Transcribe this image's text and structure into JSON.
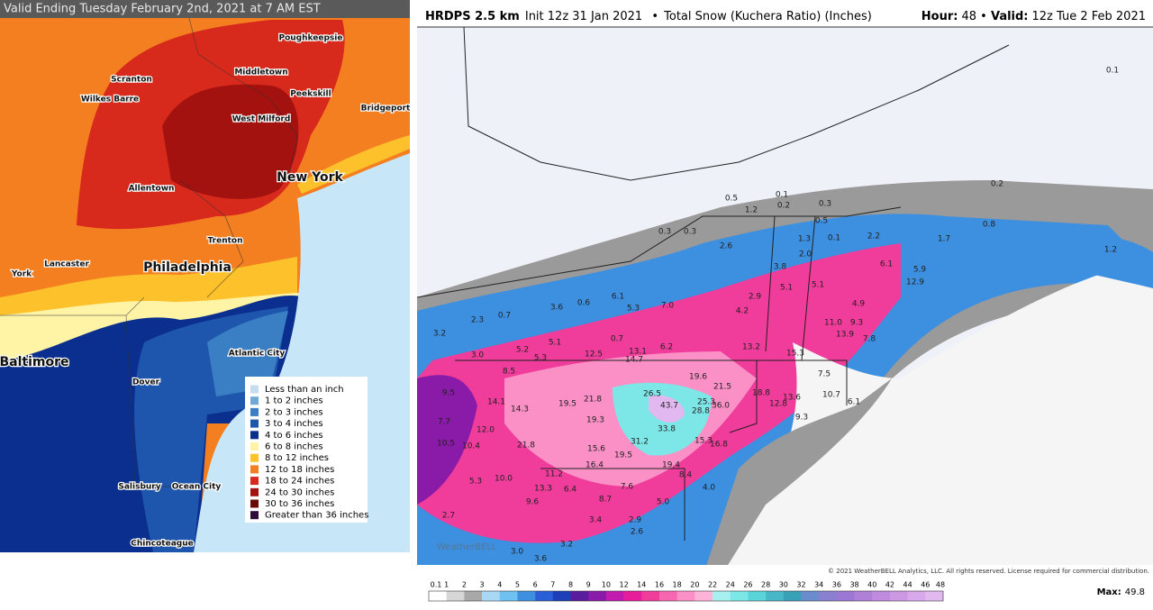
{
  "left_map": {
    "title": "Valid Ending Tuesday February 2nd, 2021 at 7 AM EST",
    "cities": [
      {
        "name": "Poughkeepsie"
      },
      {
        "name": "Scranton"
      },
      {
        "name": "Middletown"
      },
      {
        "name": "Wilkes Barre"
      },
      {
        "name": "Peekskill"
      },
      {
        "name": "Bridgeport"
      },
      {
        "name": "West Milford"
      },
      {
        "name": "New York"
      },
      {
        "name": "Allentown"
      },
      {
        "name": "Trenton"
      },
      {
        "name": "York"
      },
      {
        "name": "Lancaster"
      },
      {
        "name": "Philadelphia"
      },
      {
        "name": "Baltimore"
      },
      {
        "name": "Atlantic City"
      },
      {
        "name": "Dover"
      },
      {
        "name": "Salisbury"
      },
      {
        "name": "Ocean City"
      },
      {
        "name": "Chincoteague"
      }
    ],
    "legend": [
      {
        "label": "Less than an inch",
        "color": "#c6dcef"
      },
      {
        "label": "1 to 2 inches",
        "color": "#6fa9d6"
      },
      {
        "label": "2 to 3 inches",
        "color": "#3a7fc4"
      },
      {
        "label": "3 to 4 inches",
        "color": "#1f56ad"
      },
      {
        "label": "4 to 6 inches",
        "color": "#0b2f8f"
      },
      {
        "label": "6 to 8 inches",
        "color": "#fff4a6"
      },
      {
        "label": "8 to 12 inches",
        "color": "#fdc12b"
      },
      {
        "label": "12 to 18 inches",
        "color": "#f47f20"
      },
      {
        "label": "18 to 24 inches",
        "color": "#d72a1c"
      },
      {
        "label": "24 to 30 inches",
        "color": "#a3120e"
      },
      {
        "label": "30 to 36 inches",
        "color": "#6b0808"
      },
      {
        "label": "Greater than 36 inches",
        "color": "#2e0a3a"
      }
    ]
  },
  "right_map": {
    "model": "HRDPS 2.5 km",
    "init": "Init 12z 31 Jan 2021",
    "field": "Total Snow (Kuchera Ratio) (Inches)",
    "hour_label": "Hour:",
    "hour": "48",
    "valid_label": "Valid:",
    "valid": "12z Tue 2 Feb 2021",
    "map_values": [
      "0.1",
      "0.2",
      "0.5",
      "0.1",
      "0.2",
      "0.3",
      "0.5",
      "1.2",
      "0.3",
      "0.3",
      "0.8",
      "2.6",
      "1.3",
      "0.1",
      "2.2",
      "1.7",
      "2.0",
      "3.8",
      "6.1",
      "5.9",
      "12.9",
      "1.2",
      "6.1",
      "0.6",
      "3.6",
      "5.3",
      "7.0",
      "2.9",
      "5.1",
      "5.1",
      "4.9",
      "4.2",
      "2.3",
      "0.7",
      "3.2",
      "5.1",
      "5.2",
      "5.3",
      "3.0",
      "0.7",
      "13.1",
      "12.5",
      "14.7",
      "6.2",
      "13.2",
      "11.0",
      "9.3",
      "13.9",
      "7.8",
      "15.3",
      "7.5",
      "8.5",
      "19.6",
      "21.5",
      "18.8",
      "9.5",
      "14.1",
      "14.3",
      "19.5",
      "21.8",
      "26.5",
      "25.3",
      "36.0",
      "43.7",
      "12.8",
      "13.6",
      "10.7",
      "6.1",
      "9.3",
      "28.8",
      "19.3",
      "7.7",
      "12.0",
      "33.8",
      "10.5",
      "10.4",
      "21.8",
      "15.6",
      "19.5",
      "31.2",
      "15.3",
      "16.8",
      "16.4",
      "19.4",
      "8.4",
      "11.2",
      "10.0",
      "5.3",
      "13.3",
      "6.4",
      "7.6",
      "4.0",
      "9.6",
      "8.7",
      "5.0",
      "2.7",
      "3.4",
      "2.9",
      "2.6",
      "3.0",
      "3.6",
      "3.2"
    ],
    "scale": [
      "0.1",
      "1",
      "2",
      "3",
      "4",
      "5",
      "6",
      "7",
      "8",
      "9",
      "10",
      "12",
      "14",
      "16",
      "18",
      "20",
      "22",
      "24",
      "26",
      "28",
      "30",
      "32",
      "34",
      "36",
      "38",
      "40",
      "42",
      "44",
      "46",
      "48"
    ],
    "scale_colors": [
      "#ffffff",
      "#d6d6d6",
      "#a8a8a8",
      "#a9d8f5",
      "#6ec1f0",
      "#3d8fe0",
      "#2a5fd8",
      "#1c3fb8",
      "#5a1c9c",
      "#8a1aa8",
      "#c21bb0",
      "#e61e9c",
      "#f03c9a",
      "#f766b0",
      "#fb90c6",
      "#fdb4d8",
      "#a8f0f0",
      "#7de6e6",
      "#5ad4d8",
      "#48b8c8",
      "#3aa0b8",
      "#6a8ccc",
      "#8a80d0",
      "#9c78d4",
      "#b080d8",
      "#c08ade",
      "#cc98e4",
      "#d8a8ea",
      "#e2b8f0"
    ],
    "max_label": "Max:",
    "max": "49.8",
    "copyright": "© 2021 WeatherBELL Analytics, LLC. All rights reserved. License required for commercial distribution.",
    "watermark": "WeatherBELL"
  }
}
